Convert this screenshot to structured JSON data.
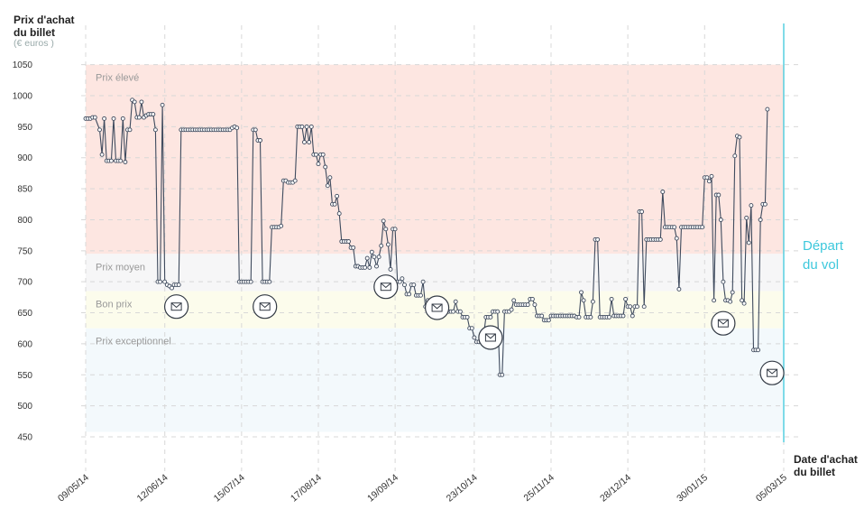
{
  "labels": {
    "ytitle_line1": "Prix d'achat",
    "ytitle_line2": "du billet",
    "yunit": "(€ euros )",
    "xtitle_line1": "Date d'achat",
    "xtitle_line2": "du billet",
    "depart_line1": "Départ",
    "depart_line2": "du vol"
  },
  "colors": {
    "line": "#3f4b5e",
    "departure": "#3dc8dc",
    "zone_eleve": "#fde6e1",
    "zone_moyen": "#f6f6f7",
    "zone_bon": "#fcfcec",
    "zone_exceptionnel": "#f3f9fc"
  },
  "chart_data": {
    "type": "line",
    "title": "",
    "ylabel": "Prix d'achat du billet (€ euros )",
    "xlabel": "Date d'achat du billet",
    "ylim": [
      400,
      1100
    ],
    "yticks": [
      450,
      500,
      550,
      600,
      650,
      700,
      750,
      800,
      850,
      900,
      950,
      1000,
      1050
    ],
    "xlim": [
      0,
      300
    ],
    "xticks": [
      {
        "label": "09/05/14",
        "x": 0
      },
      {
        "label": "12/06/14",
        "x": 34
      },
      {
        "label": "15/07/14",
        "x": 67
      },
      {
        "label": "17/08/14",
        "x": 100
      },
      {
        "label": "19/09/14",
        "x": 133
      },
      {
        "label": "23/10/14",
        "x": 167
      },
      {
        "label": "25/11/14",
        "x": 200
      },
      {
        "label": "28/12/14",
        "x": 233
      },
      {
        "label": "30/01/15",
        "x": 266
      },
      {
        "label": "05/03/15",
        "x": 300
      }
    ],
    "grid": true,
    "zones": [
      {
        "name": "Prix élevé",
        "from": 745,
        "to": 1050
      },
      {
        "name": "Prix moyen",
        "from": 685,
        "to": 745
      },
      {
        "name": "Bon prix",
        "from": 625,
        "to": 685
      },
      {
        "name": "Prix exceptionnel",
        "from": 458,
        "to": 625
      }
    ],
    "departure_x": 300,
    "series": [
      {
        "values": [
          [
            0,
            963
          ],
          [
            1,
            963
          ],
          [
            2,
            963
          ],
          [
            3,
            965
          ],
          [
            4,
            965
          ],
          [
            6,
            945
          ],
          [
            7,
            905
          ],
          [
            8,
            963
          ],
          [
            9,
            895
          ],
          [
            10,
            895
          ],
          [
            11,
            895
          ],
          [
            12,
            963
          ],
          [
            13,
            895
          ],
          [
            14,
            895
          ],
          [
            15,
            895
          ],
          [
            16,
            963
          ],
          [
            17,
            893
          ],
          [
            18,
            945
          ],
          [
            19,
            945
          ],
          [
            20,
            993
          ],
          [
            21,
            990
          ],
          [
            22,
            965
          ],
          [
            23,
            965
          ],
          [
            24,
            990
          ],
          [
            25,
            965
          ],
          [
            26,
            968
          ],
          [
            27,
            970
          ],
          [
            28,
            970
          ],
          [
            29,
            970
          ],
          [
            30,
            945
          ],
          [
            31,
            700
          ],
          [
            32,
            700
          ],
          [
            33,
            985
          ],
          [
            34,
            700
          ],
          [
            35,
            695
          ],
          [
            36,
            693
          ],
          [
            37,
            690
          ],
          [
            38,
            695
          ],
          [
            39,
            695
          ],
          [
            40,
            695
          ],
          [
            41,
            945
          ],
          [
            42,
            945
          ],
          [
            43,
            945
          ],
          [
            44,
            945
          ],
          [
            45,
            945
          ],
          [
            46,
            945
          ],
          [
            47,
            945
          ],
          [
            48,
            945
          ],
          [
            49,
            945
          ],
          [
            50,
            945
          ],
          [
            51,
            945
          ],
          [
            52,
            945
          ],
          [
            53,
            945
          ],
          [
            54,
            945
          ],
          [
            55,
            945
          ],
          [
            56,
            945
          ],
          [
            57,
            945
          ],
          [
            58,
            945
          ],
          [
            59,
            945
          ],
          [
            60,
            945
          ],
          [
            61,
            945
          ],
          [
            62,
            945
          ],
          [
            63,
            948
          ],
          [
            64,
            950
          ],
          [
            65,
            948
          ],
          [
            66,
            700
          ],
          [
            67,
            700
          ],
          [
            68,
            700
          ],
          [
            69,
            700
          ],
          [
            70,
            700
          ],
          [
            71,
            700
          ],
          [
            72,
            945
          ],
          [
            73,
            945
          ],
          [
            74,
            928
          ],
          [
            75,
            928
          ],
          [
            76,
            700
          ],
          [
            77,
            700
          ],
          [
            78,
            700
          ],
          [
            79,
            700
          ],
          [
            80,
            788
          ],
          [
            81,
            788
          ],
          [
            82,
            788
          ],
          [
            83,
            788
          ],
          [
            84,
            790
          ],
          [
            85,
            863
          ],
          [
            86,
            863
          ],
          [
            87,
            860
          ],
          [
            88,
            860
          ],
          [
            89,
            860
          ],
          [
            90,
            863
          ],
          [
            91,
            950
          ],
          [
            92,
            950
          ],
          [
            93,
            950
          ],
          [
            94,
            925
          ],
          [
            95,
            950
          ],
          [
            96,
            925
          ],
          [
            97,
            950
          ],
          [
            98,
            905
          ],
          [
            99,
            905
          ],
          [
            100,
            890
          ],
          [
            101,
            905
          ],
          [
            102,
            905
          ],
          [
            103,
            885
          ],
          [
            104,
            855
          ],
          [
            105,
            868
          ],
          [
            106,
            825
          ],
          [
            107,
            825
          ],
          [
            108,
            838
          ],
          [
            109,
            810
          ],
          [
            110,
            765
          ],
          [
            111,
            765
          ],
          [
            112,
            765
          ],
          [
            113,
            765
          ],
          [
            114,
            755
          ],
          [
            115,
            755
          ],
          [
            116,
            725
          ],
          [
            117,
            725
          ],
          [
            118,
            723
          ],
          [
            119,
            723
          ],
          [
            120,
            723
          ],
          [
            121,
            738
          ],
          [
            122,
            723
          ],
          [
            123,
            748
          ],
          [
            124,
            740
          ],
          [
            125,
            725
          ],
          [
            126,
            740
          ],
          [
            127,
            758
          ],
          [
            128,
            798
          ],
          [
            129,
            785
          ],
          [
            130,
            760
          ],
          [
            131,
            720
          ],
          [
            132,
            785
          ],
          [
            133,
            785
          ],
          [
            134,
            700
          ],
          [
            135,
            700
          ],
          [
            136,
            705
          ],
          [
            137,
            695
          ],
          [
            138,
            680
          ],
          [
            139,
            680
          ],
          [
            140,
            695
          ],
          [
            141,
            695
          ],
          [
            142,
            678
          ],
          [
            143,
            678
          ],
          [
            144,
            678
          ],
          [
            145,
            700
          ],
          [
            146,
            660
          ],
          [
            147,
            670
          ],
          [
            148,
            660
          ],
          [
            149,
            668
          ],
          [
            150,
            660
          ],
          [
            151,
            668
          ],
          [
            152,
            668
          ],
          [
            153,
            652
          ],
          [
            154,
            668
          ],
          [
            155,
            652
          ],
          [
            156,
            652
          ],
          [
            157,
            652
          ],
          [
            158,
            652
          ],
          [
            159,
            668
          ],
          [
            160,
            652
          ],
          [
            161,
            652
          ],
          [
            162,
            643
          ],
          [
            163,
            643
          ],
          [
            164,
            643
          ],
          [
            165,
            625
          ],
          [
            166,
            625
          ],
          [
            167,
            610
          ],
          [
            168,
            603
          ],
          [
            169,
            603
          ],
          [
            170,
            603
          ],
          [
            171,
            613
          ],
          [
            172,
            643
          ],
          [
            173,
            643
          ],
          [
            174,
            643
          ],
          [
            175,
            652
          ],
          [
            176,
            652
          ],
          [
            177,
            652
          ],
          [
            178,
            550
          ],
          [
            179,
            550
          ],
          [
            180,
            652
          ],
          [
            181,
            652
          ],
          [
            182,
            652
          ],
          [
            183,
            655
          ],
          [
            184,
            670
          ],
          [
            185,
            663
          ],
          [
            186,
            663
          ],
          [
            187,
            663
          ],
          [
            188,
            663
          ],
          [
            189,
            663
          ],
          [
            190,
            663
          ],
          [
            191,
            672
          ],
          [
            192,
            672
          ],
          [
            193,
            663
          ],
          [
            194,
            645
          ],
          [
            195,
            645
          ],
          [
            196,
            645
          ],
          [
            197,
            638
          ],
          [
            198,
            638
          ],
          [
            199,
            638
          ],
          [
            200,
            645
          ],
          [
            201,
            645
          ],
          [
            202,
            645
          ],
          [
            203,
            645
          ],
          [
            204,
            645
          ],
          [
            205,
            645
          ],
          [
            206,
            645
          ],
          [
            207,
            645
          ],
          [
            208,
            645
          ],
          [
            209,
            645
          ],
          [
            210,
            645
          ],
          [
            211,
            643
          ],
          [
            212,
            643
          ],
          [
            213,
            683
          ],
          [
            214,
            670
          ],
          [
            215,
            643
          ],
          [
            216,
            643
          ],
          [
            217,
            643
          ],
          [
            218,
            668
          ],
          [
            219,
            768
          ],
          [
            220,
            768
          ],
          [
            221,
            643
          ],
          [
            222,
            643
          ],
          [
            223,
            643
          ],
          [
            224,
            643
          ],
          [
            225,
            643
          ],
          [
            226,
            672
          ],
          [
            227,
            645
          ],
          [
            228,
            645
          ],
          [
            229,
            645
          ],
          [
            230,
            645
          ],
          [
            231,
            645
          ],
          [
            232,
            672
          ],
          [
            233,
            660
          ],
          [
            234,
            660
          ],
          [
            235,
            645
          ],
          [
            236,
            660
          ],
          [
            237,
            660
          ],
          [
            238,
            813
          ],
          [
            239,
            813
          ],
          [
            240,
            660
          ],
          [
            241,
            768
          ],
          [
            242,
            768
          ],
          [
            243,
            768
          ],
          [
            244,
            768
          ],
          [
            245,
            768
          ],
          [
            246,
            768
          ],
          [
            247,
            768
          ],
          [
            248,
            845
          ],
          [
            249,
            788
          ],
          [
            250,
            788
          ],
          [
            251,
            788
          ],
          [
            252,
            788
          ],
          [
            253,
            788
          ],
          [
            254,
            770
          ],
          [
            255,
            688
          ],
          [
            256,
            788
          ],
          [
            257,
            788
          ],
          [
            258,
            788
          ],
          [
            259,
            788
          ],
          [
            260,
            788
          ],
          [
            261,
            788
          ],
          [
            262,
            788
          ],
          [
            263,
            788
          ],
          [
            264,
            788
          ],
          [
            265,
            788
          ],
          [
            266,
            868
          ],
          [
            267,
            868
          ],
          [
            268,
            862
          ],
          [
            269,
            870
          ],
          [
            270,
            670
          ],
          [
            271,
            840
          ],
          [
            272,
            840
          ],
          [
            273,
            800
          ],
          [
            274,
            700
          ],
          [
            275,
            670
          ],
          [
            276,
            670
          ],
          [
            277,
            668
          ],
          [
            278,
            683
          ],
          [
            279,
            903
          ],
          [
            280,
            935
          ],
          [
            281,
            933
          ],
          [
            282,
            670
          ],
          [
            283,
            665
          ],
          [
            284,
            803
          ],
          [
            285,
            763
          ],
          [
            286,
            823
          ],
          [
            287,
            590
          ],
          [
            288,
            590
          ],
          [
            289,
            590
          ],
          [
            290,
            800
          ],
          [
            291,
            825
          ],
          [
            292,
            825
          ],
          [
            293,
            978
          ]
        ]
      }
    ],
    "annotations": [
      {
        "icon": "envelope-icon",
        "x": 39,
        "y": 660
      },
      {
        "icon": "envelope-icon",
        "x": 77,
        "y": 660
      },
      {
        "icon": "envelope-icon",
        "x": 129,
        "y": 692
      },
      {
        "icon": "envelope-icon",
        "x": 151,
        "y": 658
      },
      {
        "icon": "envelope-icon",
        "x": 174,
        "y": 610
      },
      {
        "icon": "envelope-icon",
        "x": 274,
        "y": 633
      },
      {
        "icon": "envelope-icon",
        "x": 295,
        "y": 553
      }
    ]
  }
}
